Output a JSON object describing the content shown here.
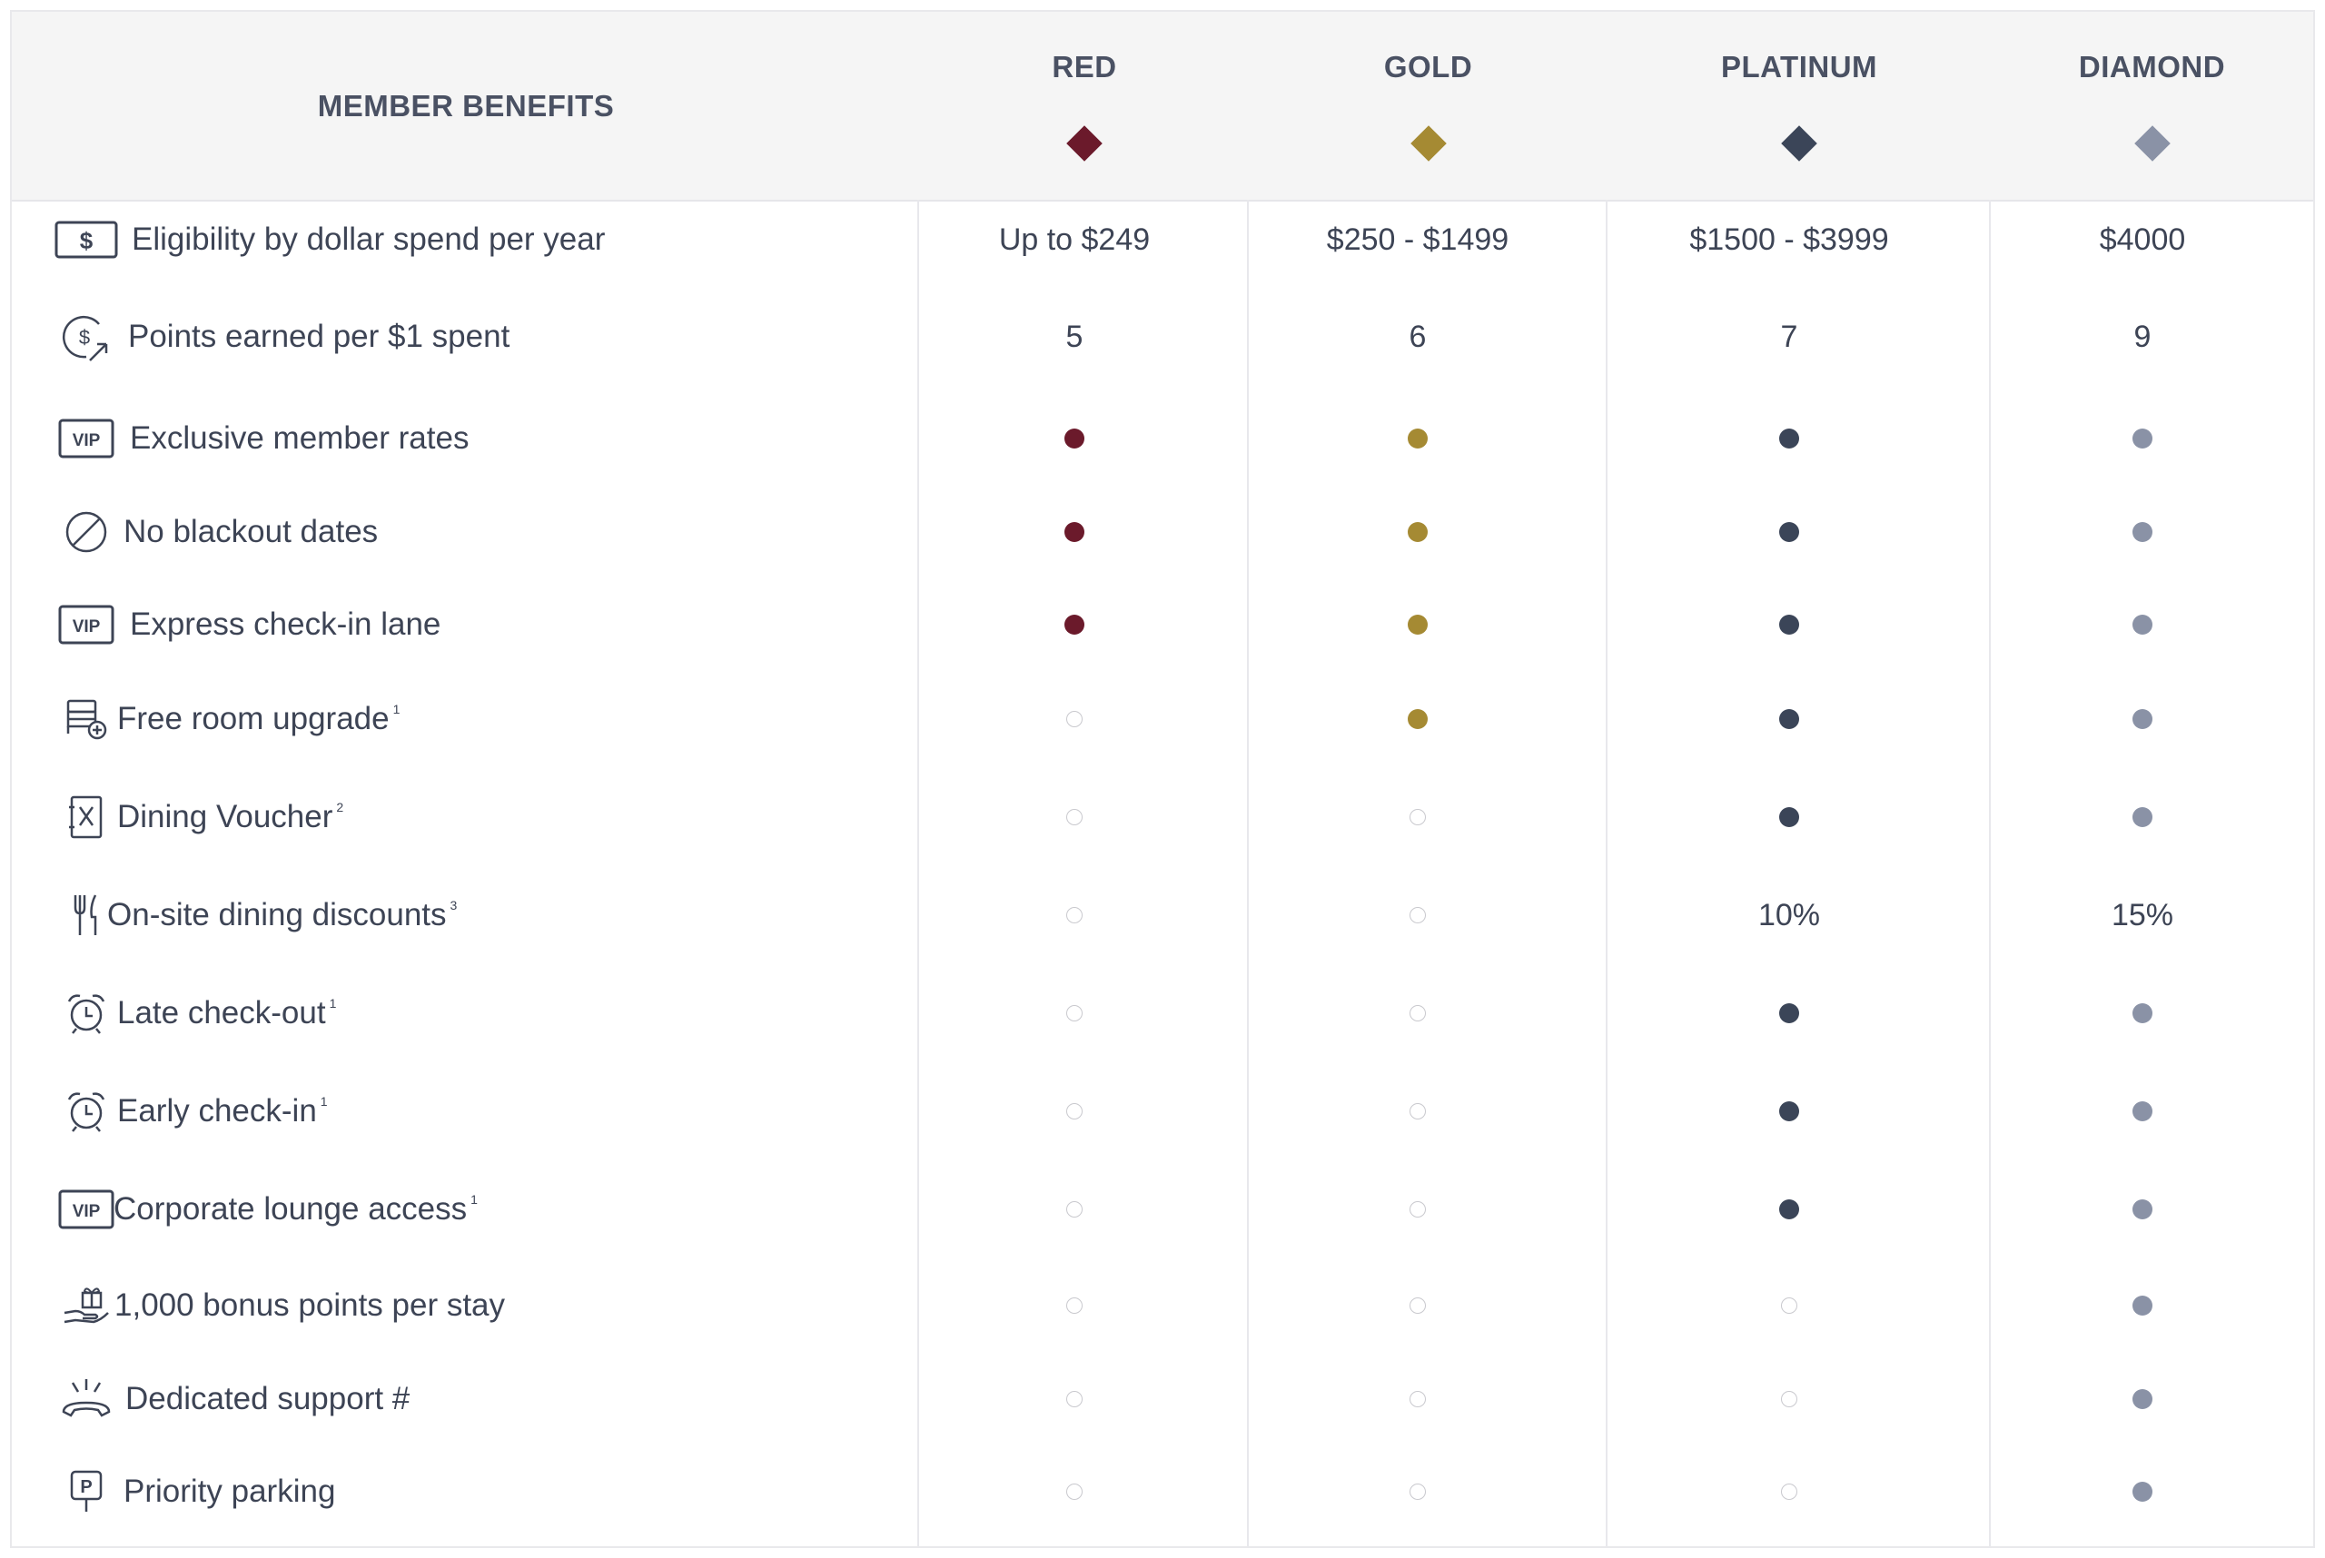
{
  "header": {
    "title": "MEMBER BENEFITS",
    "tiers": [
      {
        "name": "RED",
        "color": "#6b1a2b"
      },
      {
        "name": "GOLD",
        "color": "#a58a33"
      },
      {
        "name": "PLATINUM",
        "color": "#3b4558"
      },
      {
        "name": "DIAMOND",
        "color": "#8a92a6"
      }
    ]
  },
  "rows": [
    {
      "label": "Eligibility by dollar spend per year",
      "sup": "",
      "icon": "dollar-bill-icon",
      "values": [
        "Up to $249",
        "$250 - $1499",
        "$1500 - $3999",
        "$4000"
      ]
    },
    {
      "label": "Points earned per $1 spent",
      "sup": "",
      "icon": "dollar-earn-icon",
      "values": [
        "5",
        "6",
        "7",
        "9"
      ]
    },
    {
      "label": "Exclusive member rates",
      "sup": "",
      "icon": "vip-icon",
      "values": [
        "dot",
        "dot",
        "dot",
        "dot"
      ]
    },
    {
      "label": "No blackout dates",
      "sup": "",
      "icon": "prohibited-icon",
      "values": [
        "dot",
        "dot",
        "dot",
        "dot"
      ]
    },
    {
      "label": "Express check-in lane",
      "sup": "",
      "icon": "vip-icon",
      "values": [
        "dot",
        "dot",
        "dot",
        "dot"
      ]
    },
    {
      "label": "Free room upgrade",
      "sup": "1",
      "icon": "bed-upgrade-icon",
      "values": [
        "empty",
        "dot",
        "dot",
        "dot"
      ]
    },
    {
      "label": "Dining Voucher",
      "sup": "2",
      "icon": "dining-voucher-icon",
      "values": [
        "empty",
        "empty",
        "dot",
        "dot"
      ]
    },
    {
      "label": "On-site dining discounts",
      "sup": "3",
      "icon": "fork-knife-icon",
      "values": [
        "empty",
        "empty",
        "10%",
        "15%"
      ]
    },
    {
      "label": "Late check-out",
      "sup": "1",
      "icon": "alarm-clock-icon",
      "values": [
        "empty",
        "empty",
        "dot",
        "dot"
      ]
    },
    {
      "label": "Early check-in",
      "sup": "1",
      "icon": "alarm-clock-icon",
      "values": [
        "empty",
        "empty",
        "dot",
        "dot"
      ]
    },
    {
      "label": "Corporate lounge access",
      "sup": "1",
      "icon": "vip-icon",
      "values": [
        "empty",
        "empty",
        "dot",
        "dot"
      ]
    },
    {
      "label": "1,000 bonus points per stay",
      "sup": "",
      "icon": "gift-hand-icon",
      "values": [
        "empty",
        "empty",
        "empty",
        "dot"
      ]
    },
    {
      "label": "Dedicated support #",
      "sup": "",
      "icon": "ringing-phone-icon",
      "values": [
        "empty",
        "empty",
        "empty",
        "dot"
      ]
    },
    {
      "label": "Priority parking",
      "sup": "",
      "icon": "parking-sign-icon",
      "values": [
        "empty",
        "empty",
        "empty",
        "dot"
      ]
    }
  ]
}
